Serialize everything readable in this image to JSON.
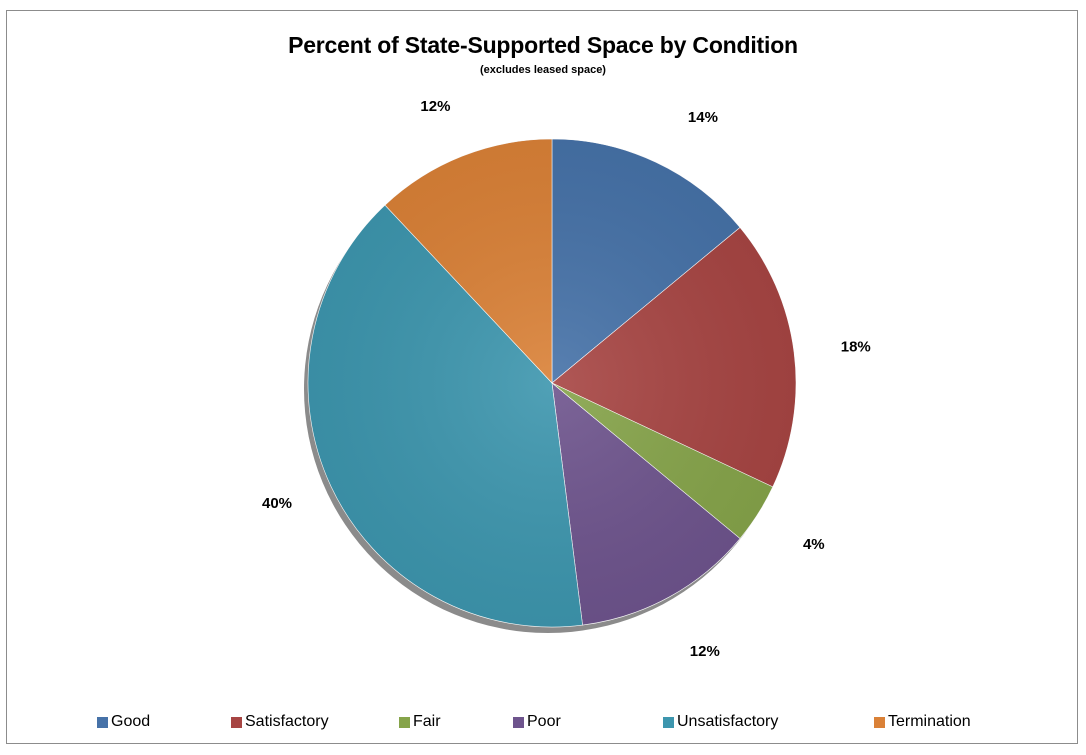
{
  "chart_data": {
    "type": "pie",
    "title": "Percent of State-Supported Space by Condition",
    "subtitle": "(excludes leased space)",
    "categories": [
      "Good",
      "Satisfactory",
      "Fair",
      "Poor",
      "Unsatisfactory",
      "Termination"
    ],
    "values": [
      14,
      18,
      4,
      12,
      40,
      12
    ],
    "data_labels": [
      "14%",
      "18%",
      "4%",
      "12%",
      "40%",
      "12%"
    ],
    "colors": [
      "#4672a8",
      "#a74543",
      "#86a44a",
      "#6e548d",
      "#3d96ae",
      "#da8137"
    ],
    "legend_position": "bottom"
  }
}
